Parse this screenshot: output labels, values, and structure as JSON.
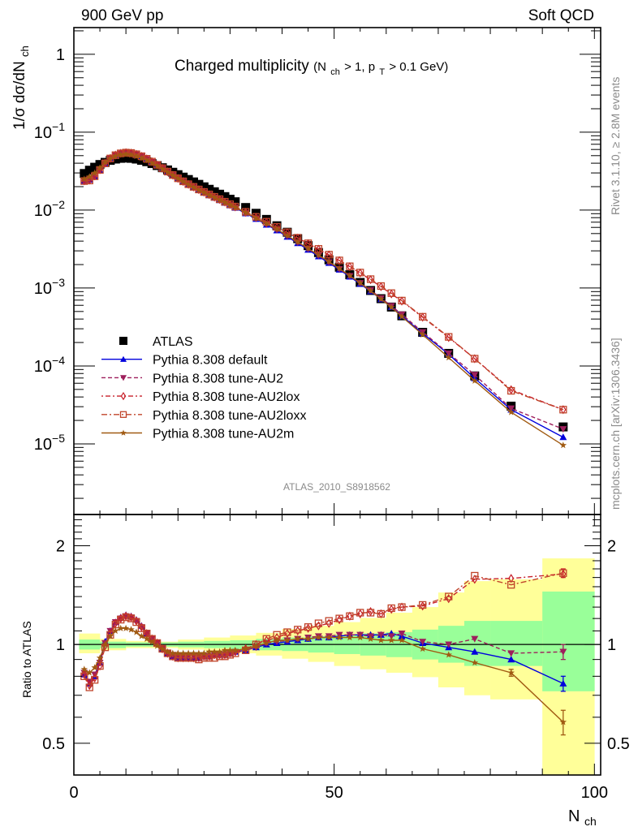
{
  "header": {
    "left_label": "900 GeV pp",
    "right_label": "Soft QCD"
  },
  "side_text": {
    "rivet": "Rivet 3.1.10, ≥ 2.8M events",
    "source": "mcplots.cern.ch [arXiv:1306.3436]"
  },
  "watermark": "ATLAS_2010_S8918562",
  "chart_data": [
    {
      "panel": "main",
      "type": "line",
      "title": "Charged multiplicity",
      "title_detail": {
        "open": "(N",
        "sub1": "ch",
        "mid": " > 1, p",
        "sub2": "T",
        "close": " > 0.1 GeV)"
      },
      "xlabel": "N",
      "xlabel_sub": "ch",
      "ylabel": "1/σ dσ/dN",
      "ylabel_sub": "ch",
      "yscale": "log",
      "xlim": [
        0,
        101.2
      ],
      "ylim": [
        1.24e-06,
        2.2
      ],
      "xticks": [
        0,
        50,
        100
      ],
      "yticks": [
        {
          "value": 1,
          "label": "1",
          "exp": ""
        },
        {
          "value": 0.1,
          "label": "10",
          "exp": "−1"
        },
        {
          "value": 0.01,
          "label": "10",
          "exp": "−2"
        },
        {
          "value": 0.001,
          "label": "10",
          "exp": "−3"
        },
        {
          "value": 0.0001,
          "label": "10",
          "exp": "−4"
        },
        {
          "value": 1e-05,
          "label": "10",
          "exp": "−5"
        }
      ],
      "legend_position": "bottom-left",
      "x": [
        2,
        3,
        4,
        5,
        6,
        7,
        8,
        9,
        10,
        11,
        12,
        13,
        14,
        15,
        16,
        17,
        18,
        19,
        20,
        21,
        22,
        23,
        24,
        25,
        26,
        27,
        28,
        29,
        30,
        31,
        33,
        35,
        37,
        39,
        41,
        43,
        45,
        47,
        49,
        51,
        53,
        55,
        57,
        59,
        61,
        63,
        67,
        72,
        77,
        84,
        94
      ],
      "series": [
        {
          "name": "ATLAS",
          "style": "data",
          "color": "#000000",
          "marker": "square",
          "values": [
            0.0295,
            0.0325,
            0.0355,
            0.0385,
            0.041,
            0.0435,
            0.0452,
            0.0462,
            0.0466,
            0.0462,
            0.0452,
            0.0436,
            0.0418,
            0.0396,
            0.0373,
            0.035,
            0.0328,
            0.0306,
            0.0285,
            0.0265,
            0.0247,
            0.023,
            0.0214,
            0.0199,
            0.0185,
            0.0172,
            0.016,
            0.0149,
            0.0138,
            0.0128,
            0.0108,
            0.0091,
            0.0076,
            0.0063,
            0.0052,
            0.0043,
            0.0035,
            0.00285,
            0.0023,
            0.00185,
            0.00148,
            0.00118,
            0.00093,
            0.00073,
            0.00057,
            0.00044,
            0.00027,
            0.000145,
            7.45e-05,
            3.05e-05,
            1.65e-05
          ]
        },
        {
          "name": "Pythia 8.308 default",
          "style": "solid",
          "color": "#0000dd",
          "marker": "triangle-up",
          "values": [
            0.0238,
            0.0245,
            0.0272,
            0.0325,
            0.0395,
            0.0455,
            0.05,
            0.0528,
            0.054,
            0.0535,
            0.0515,
            0.0485,
            0.045,
            0.0412,
            0.0375,
            0.034,
            0.0307,
            0.0278,
            0.0252,
            0.023,
            0.0211,
            0.0195,
            0.018,
            0.0167,
            0.0155,
            0.0144,
            0.0134,
            0.0124,
            0.0115,
            0.0107,
            0.0091,
            0.0077,
            0.0065,
            0.0055,
            0.00455,
            0.00376,
            0.0031,
            0.00255,
            0.0021,
            0.00172,
            0.0014,
            0.00113,
            0.00091,
            0.00072,
            0.00057,
            0.00044,
            0.000262,
            0.000142,
            6.95e-05,
            2.75e-05,
            1.22e-05
          ]
        },
        {
          "name": "Pythia 8.308 tune-AU2",
          "style": "dashed",
          "color": "#9e1f5c",
          "marker": "triangle-down",
          "values": [
            0.024,
            0.0248,
            0.0278,
            0.0332,
            0.04,
            0.046,
            0.0505,
            0.0532,
            0.0543,
            0.0537,
            0.0518,
            0.0488,
            0.0452,
            0.0415,
            0.0378,
            0.0342,
            0.0309,
            0.028,
            0.0254,
            0.0232,
            0.0213,
            0.0196,
            0.0181,
            0.0168,
            0.0156,
            0.0145,
            0.0135,
            0.0125,
            0.0116,
            0.0108,
            0.0092,
            0.0078,
            0.0066,
            0.0056,
            0.00465,
            0.00385,
            0.00318,
            0.00262,
            0.00215,
            0.00176,
            0.00143,
            0.00116,
            0.00094,
            0.00074,
            0.00059,
            0.00046,
            0.000272,
            0.000145,
            7.7e-05,
            2.85e-05,
            1.55e-05
          ]
        },
        {
          "name": "Pythia 8.308 tune-AU2lox",
          "style": "dotdash",
          "color": "#c8202a",
          "marker": "diamond-open",
          "values": [
            0.0238,
            0.0242,
            0.0275,
            0.033,
            0.04,
            0.0462,
            0.0508,
            0.0535,
            0.0546,
            0.054,
            0.052,
            0.049,
            0.0455,
            0.0418,
            0.038,
            0.0345,
            0.0311,
            0.0281,
            0.0255,
            0.0233,
            0.0214,
            0.0198,
            0.0183,
            0.017,
            0.0158,
            0.0147,
            0.0137,
            0.0127,
            0.0118,
            0.011,
            0.0094,
            0.0081,
            0.007,
            0.006,
            0.00515,
            0.00438,
            0.00372,
            0.00315,
            0.00266,
            0.00225,
            0.00188,
            0.00156,
            0.00128,
            0.00104,
            0.00084,
            0.00068,
            0.000422,
            0.000232,
            0.000124,
            4.95e-05,
            2.75e-05
          ]
        },
        {
          "name": "Pythia 8.308 tune-AU2loxx",
          "style": "dashdot",
          "color": "#c0442a",
          "marker": "square-open",
          "values": [
            0.0236,
            0.024,
            0.0272,
            0.0328,
            0.0398,
            0.046,
            0.0507,
            0.0535,
            0.0547,
            0.0541,
            0.0521,
            0.0491,
            0.0456,
            0.0419,
            0.0381,
            0.0346,
            0.0312,
            0.0282,
            0.0256,
            0.0234,
            0.0215,
            0.0199,
            0.0184,
            0.0171,
            0.0159,
            0.0148,
            0.0138,
            0.0128,
            0.0119,
            0.0111,
            0.0095,
            0.0082,
            0.0071,
            0.0061,
            0.0052,
            0.00442,
            0.00375,
            0.00318,
            0.00268,
            0.00226,
            0.0019,
            0.00158,
            0.0013,
            0.00106,
            0.00086,
            0.00069,
            0.000428,
            0.000236,
            0.000124,
            4.8e-05,
            2.75e-05
          ]
        },
        {
          "name": "Pythia 8.308 tune-AU2m",
          "style": "solid",
          "color": "#a05a12",
          "marker": "star",
          "values": [
            0.025,
            0.0268,
            0.03,
            0.035,
            0.041,
            0.046,
            0.0495,
            0.0515,
            0.052,
            0.0512,
            0.0492,
            0.0465,
            0.0435,
            0.0402,
            0.037,
            0.0338,
            0.0308,
            0.028,
            0.0255,
            0.0233,
            0.0214,
            0.0197,
            0.0182,
            0.0169,
            0.0157,
            0.0146,
            0.0136,
            0.0126,
            0.0117,
            0.0109,
            0.0093,
            0.0079,
            0.0067,
            0.0057,
            0.0047,
            0.0039,
            0.00322,
            0.00265,
            0.00218,
            0.00178,
            0.00144,
            0.00116,
            0.00092,
            0.00072,
            0.000565,
            0.00043,
            0.000252,
            0.000128,
            6.45e-05,
            2.55e-05,
            9.6e-06
          ]
        }
      ]
    },
    {
      "panel": "ratio",
      "type": "line",
      "ylabel": "Ratio to ATLAS",
      "xlabel": "N",
      "xlabel_sub": "ch",
      "yscale": "log",
      "xlim": [
        0,
        101.2
      ],
      "ylim": [
        0.4,
        2.49
      ],
      "xticks": [
        0,
        50,
        100
      ],
      "yticks": [
        {
          "value": 2,
          "label": "2"
        },
        {
          "value": 1,
          "label": "1"
        },
        {
          "value": 0.5,
          "label": "0.5"
        }
      ],
      "reference_line": 1,
      "bands": {
        "edges": [
          1,
          5,
          10,
          15,
          20,
          25,
          30,
          35,
          40,
          45,
          50,
          55,
          60,
          65,
          70,
          75,
          80,
          90,
          100
        ],
        "stat_color": "#99ff99",
        "total_color": "#ffff99",
        "stat": [
          [
            0.965,
            1.035
          ],
          [
            0.975,
            1.02
          ],
          [
            0.985,
            1.015
          ],
          [
            0.985,
            1.015
          ],
          [
            0.98,
            1.02
          ],
          [
            0.975,
            1.025
          ],
          [
            0.97,
            1.03
          ],
          [
            0.96,
            1.04
          ],
          [
            0.955,
            1.05
          ],
          [
            0.945,
            1.06
          ],
          [
            0.935,
            1.07
          ],
          [
            0.925,
            1.08
          ],
          [
            0.915,
            1.09
          ],
          [
            0.9,
            1.11
          ],
          [
            0.88,
            1.14
          ],
          [
            0.86,
            1.18
          ],
          [
            0.86,
            1.18
          ],
          [
            0.72,
            1.45
          ],
          [
            0.72,
            1.45
          ]
        ],
        "total": [
          [
            0.94,
            1.08
          ],
          [
            0.96,
            1.04
          ],
          [
            0.975,
            1.025
          ],
          [
            0.975,
            1.02
          ],
          [
            0.965,
            1.035
          ],
          [
            0.955,
            1.05
          ],
          [
            0.94,
            1.065
          ],
          [
            0.925,
            1.085
          ],
          [
            0.905,
            1.115
          ],
          [
            0.885,
            1.14
          ],
          [
            0.86,
            1.17
          ],
          [
            0.84,
            1.205
          ],
          [
            0.82,
            1.25
          ],
          [
            0.795,
            1.3
          ],
          [
            0.74,
            1.44
          ],
          [
            0.7,
            1.56
          ],
          [
            0.68,
            1.58
          ],
          [
            0.4,
            1.83
          ],
          [
            0.4,
            1.83
          ]
        ]
      },
      "x": [
        2,
        3,
        4,
        5,
        6,
        7,
        8,
        9,
        10,
        11,
        12,
        13,
        14,
        15,
        16,
        17,
        18,
        19,
        20,
        21,
        22,
        23,
        24,
        25,
        26,
        27,
        28,
        29,
        30,
        31,
        33,
        35,
        37,
        39,
        41,
        43,
        45,
        47,
        49,
        51,
        53,
        55,
        57,
        59,
        61,
        63,
        67,
        72,
        77,
        84,
        94
      ],
      "series": [
        {
          "name": "Pythia 8.308 default",
          "color": "#0000dd",
          "style": "solid",
          "marker": "triangle-up",
          "values": [
            0.81,
            0.76,
            0.8,
            0.88,
            1.02,
            1.1,
            1.17,
            1.21,
            1.23,
            1.22,
            1.19,
            1.14,
            1.08,
            1.04,
            1.01,
            0.97,
            0.94,
            0.92,
            0.91,
            0.91,
            0.91,
            0.91,
            0.91,
            0.92,
            0.92,
            0.93,
            0.93,
            0.93,
            0.94,
            0.95,
            0.96,
            0.98,
            1.0,
            1.01,
            1.02,
            1.03,
            1.04,
            1.05,
            1.05,
            1.06,
            1.07,
            1.07,
            1.07,
            1.07,
            1.08,
            1.06,
            1.01,
            0.98,
            0.95,
            0.9,
            0.76
          ]
        },
        {
          "name": "Pythia 8.308 tune-AU2",
          "color": "#9e1f5c",
          "style": "dashed",
          "marker": "triangle-down",
          "values": [
            0.82,
            0.77,
            0.81,
            0.88,
            1.01,
            1.1,
            1.17,
            1.2,
            1.22,
            1.21,
            1.18,
            1.13,
            1.08,
            1.04,
            1.01,
            0.97,
            0.94,
            0.93,
            0.92,
            0.92,
            0.92,
            0.92,
            0.92,
            0.92,
            0.92,
            0.93,
            0.93,
            0.93,
            0.94,
            0.95,
            0.96,
            0.98,
            1.01,
            1.02,
            1.03,
            1.04,
            1.05,
            1.06,
            1.06,
            1.07,
            1.07,
            1.07,
            1.06,
            1.07,
            1.06,
            1.08,
            1.02,
            1.0,
            1.04,
            0.94,
            0.95
          ]
        },
        {
          "name": "Pythia 8.308 tune-AU2lox",
          "color": "#c8202a",
          "style": "dotdash",
          "marker": "diamond-open",
          "values": [
            0.81,
            0.75,
            0.79,
            0.86,
            0.99,
            1.08,
            1.16,
            1.2,
            1.22,
            1.21,
            1.18,
            1.13,
            1.08,
            1.04,
            1.01,
            0.97,
            0.94,
            0.92,
            0.91,
            0.91,
            0.91,
            0.91,
            0.91,
            0.92,
            0.92,
            0.93,
            0.93,
            0.93,
            0.94,
            0.95,
            0.97,
            1.0,
            1.03,
            1.05,
            1.08,
            1.1,
            1.12,
            1.14,
            1.16,
            1.19,
            1.22,
            1.24,
            1.26,
            1.24,
            1.28,
            1.3,
            1.31,
            1.38,
            1.58,
            1.59,
            1.64
          ]
        },
        {
          "name": "Pythia 8.308 tune-AU2loxx",
          "color": "#c0442a",
          "style": "dashdot",
          "marker": "square-open",
          "values": [
            0.8,
            0.74,
            0.78,
            0.86,
            0.98,
            1.07,
            1.15,
            1.19,
            1.21,
            1.2,
            1.17,
            1.12,
            1.08,
            1.04,
            1.01,
            0.97,
            0.94,
            0.92,
            0.91,
            0.91,
            0.91,
            0.91,
            0.9,
            0.91,
            0.91,
            0.91,
            0.92,
            0.92,
            0.93,
            0.94,
            0.96,
            1.0,
            1.04,
            1.07,
            1.09,
            1.11,
            1.13,
            1.16,
            1.18,
            1.2,
            1.22,
            1.25,
            1.25,
            1.24,
            1.29,
            1.3,
            1.32,
            1.4,
            1.62,
            1.52,
            1.65
          ]
        },
        {
          "name": "Pythia 8.308 tune-AU2m",
          "color": "#a05a12",
          "style": "solid",
          "marker": "star",
          "values": [
            0.84,
            0.82,
            0.85,
            0.91,
            1.0,
            1.06,
            1.1,
            1.12,
            1.12,
            1.11,
            1.09,
            1.06,
            1.04,
            1.02,
            0.99,
            0.97,
            0.95,
            0.94,
            0.94,
            0.94,
            0.94,
            0.94,
            0.94,
            0.94,
            0.95,
            0.95,
            0.95,
            0.96,
            0.96,
            0.96,
            0.97,
            0.99,
            1.01,
            1.03,
            1.03,
            1.04,
            1.04,
            1.05,
            1.05,
            1.05,
            1.05,
            1.05,
            1.04,
            1.03,
            1.03,
            1.03,
            0.97,
            0.93,
            0.88,
            0.82,
            0.58
          ]
        }
      ],
      "errors": {
        "Pythia 8.308 default": {
          "x": [
            94
          ],
          "lo": [
            0.72
          ],
          "hi": [
            0.8
          ]
        },
        "Pythia 8.308 tune-AU2": {
          "x": [
            94
          ],
          "lo": [
            0.9
          ],
          "hi": [
            1.0
          ]
        },
        "Pythia 8.308 tune-AU2m": {
          "x": [
            84,
            94
          ],
          "lo": [
            0.8,
            0.53
          ],
          "hi": [
            0.84,
            0.63
          ]
        },
        "Pythia 8.308 tune-AU2lox": {
          "x": [
            94
          ],
          "lo": [
            1.6
          ],
          "hi": [
            1.7
          ]
        }
      }
    }
  ]
}
